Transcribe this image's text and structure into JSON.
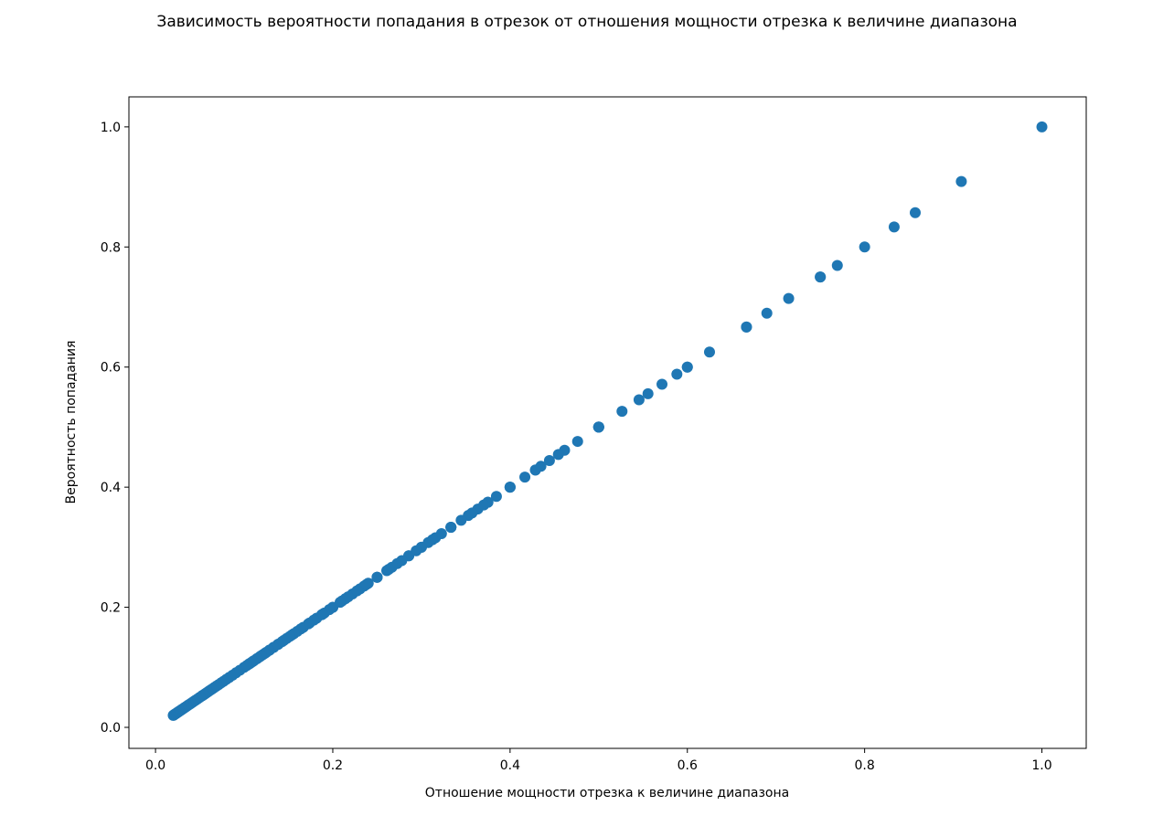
{
  "chart_data": {
    "type": "scatter",
    "title": "Зависимость вероятности попадания в отрезок от отношения мощности отрезка к величине диапазона",
    "xlabel": "Отношение мощности отрезка к величине диапазона",
    "ylabel": "Вероятность попадания",
    "xlim": [
      -0.03,
      1.05
    ],
    "ylim": [
      -0.035,
      1.05
    ],
    "xticks": [
      "0.0",
      "0.2",
      "0.4",
      "0.6",
      "0.8",
      "1.0"
    ],
    "yticks": [
      "0.0",
      "0.2",
      "0.4",
      "0.6",
      "0.8",
      "1.0"
    ],
    "grid": false,
    "marker_color": "#1f77b4",
    "series": [
      {
        "x": [
          0.02,
          0.0204,
          0.0208,
          0.0213,
          0.0217,
          0.0222,
          0.0227,
          0.0233,
          0.0238,
          0.0244,
          0.025,
          0.0256,
          0.0263,
          0.027,
          0.0278,
          0.0286,
          0.0294,
          0.0303,
          0.0312,
          0.0323,
          0.0333,
          0.0345,
          0.0357,
          0.037,
          0.0385,
          0.04,
          0.0417,
          0.0435,
          0.0455,
          0.0476,
          0.05,
          0.0526,
          0.0556,
          0.0588,
          0.0625,
          0.0667,
          0.0714,
          0.0769,
          0.0833,
          0.0909,
          0.1,
          0.1111,
          0.125,
          0.1429,
          0.1667,
          0.2,
          0.25,
          0.3333,
          0.5,
          1.0,
          0.0526,
          0.0541,
          0.0571,
          0.0606,
          0.0645,
          0.069,
          0.0741,
          0.08,
          0.087,
          0.0952,
          0.1053,
          0.1176,
          0.1333,
          0.1538,
          0.1818,
          0.2222,
          0.2857,
          0.4,
          0.6667,
          0.1081,
          0.1143,
          0.1212,
          0.129,
          0.1379,
          0.1481,
          0.16,
          0.1739,
          0.1905,
          0.2105,
          0.2353,
          0.2667,
          0.3077,
          0.3636,
          0.4444,
          0.5714,
          0.8,
          0.1875,
          0.2,
          0.2143,
          0.2308,
          0.25,
          0.2727,
          0.3,
          0.3333,
          0.375,
          0.4286,
          0.5,
          0.6,
          0.75,
          0.24,
          0.2609,
          0.2857,
          0.3158,
          0.3529,
          0.4,
          0.4615,
          0.5455,
          0.6667,
          0.8571,
          0.3,
          0.3333,
          0.375,
          0.4286,
          0.5,
          0.6,
          0.75,
          0.3571,
          0.4167,
          0.5,
          0.625,
          0.8333,
          0.4545,
          0.5556,
          0.7143,
          0.9091,
          0.5263,
          0.6897,
          0.7692,
          0.5882,
          0.4762,
          0.4348,
          0.4,
          0.3846,
          0.3704,
          0.3448,
          0.3226,
          0.3125,
          0.2941,
          0.2778,
          0.2632,
          0.25,
          0.2381,
          0.2273,
          0.2174,
          0.2083,
          0.1961,
          0.1887,
          0.1786,
          0.1724,
          0.1639,
          0.1562,
          0.1515,
          0.1449,
          0.1389,
          0.1333,
          0.1282,
          0.1235,
          0.119,
          0.1149,
          0.1099,
          0.1064,
          0.1031
        ],
        "y": [
          0.02,
          0.0204,
          0.0208,
          0.0213,
          0.0217,
          0.0222,
          0.0227,
          0.0233,
          0.0238,
          0.0244,
          0.025,
          0.0256,
          0.0263,
          0.027,
          0.0278,
          0.0286,
          0.0294,
          0.0303,
          0.0312,
          0.0323,
          0.0333,
          0.0345,
          0.0357,
          0.037,
          0.0385,
          0.04,
          0.0417,
          0.0435,
          0.0455,
          0.0476,
          0.05,
          0.0526,
          0.0556,
          0.0588,
          0.0625,
          0.0667,
          0.0714,
          0.0769,
          0.0833,
          0.0909,
          0.1,
          0.1111,
          0.125,
          0.1429,
          0.1667,
          0.2,
          0.25,
          0.3333,
          0.5,
          1.0,
          0.0526,
          0.0541,
          0.0571,
          0.0606,
          0.0645,
          0.069,
          0.0741,
          0.08,
          0.087,
          0.0952,
          0.1053,
          0.1176,
          0.1333,
          0.1538,
          0.1818,
          0.2222,
          0.2857,
          0.4,
          0.6667,
          0.1081,
          0.1143,
          0.1212,
          0.129,
          0.1379,
          0.1481,
          0.16,
          0.1739,
          0.1905,
          0.2105,
          0.2353,
          0.2667,
          0.3077,
          0.3636,
          0.4444,
          0.5714,
          0.8,
          0.1875,
          0.2,
          0.2143,
          0.2308,
          0.25,
          0.2727,
          0.3,
          0.3333,
          0.375,
          0.4286,
          0.5,
          0.6,
          0.75,
          0.24,
          0.2609,
          0.2857,
          0.3158,
          0.3529,
          0.4,
          0.4615,
          0.5455,
          0.6667,
          0.8571,
          0.3,
          0.3333,
          0.375,
          0.4286,
          0.5,
          0.6,
          0.75,
          0.3571,
          0.4167,
          0.5,
          0.625,
          0.8333,
          0.4545,
          0.5556,
          0.7143,
          0.9091,
          0.5263,
          0.6897,
          0.7692,
          0.5882,
          0.4762,
          0.4348,
          0.4,
          0.3846,
          0.3704,
          0.3448,
          0.3226,
          0.3125,
          0.2941,
          0.2778,
          0.2632,
          0.25,
          0.2381,
          0.2273,
          0.2174,
          0.2083,
          0.1961,
          0.1887,
          0.1786,
          0.1724,
          0.1639,
          0.1562,
          0.1515,
          0.1449,
          0.1389,
          0.1333,
          0.1282,
          0.1235,
          0.119,
          0.1149,
          0.1099,
          0.1064,
          0.1031
        ]
      }
    ]
  }
}
